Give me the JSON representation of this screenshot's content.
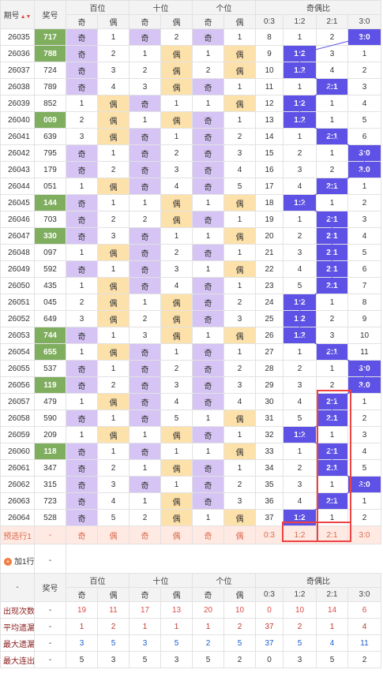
{
  "headers": {
    "issue": "期号",
    "prize": "奖号",
    "hundreds": "百位",
    "tens": "十位",
    "units": "个位",
    "ratio": "奇偶比",
    "odd": "奇",
    "even": "偶",
    "ratio_cols": [
      "0:3",
      "1:2",
      "2:1",
      "3:0"
    ]
  },
  "rows": [
    {
      "issue": "26035",
      "num": "717",
      "hot": true,
      "h": [
        "奇",
        1
      ],
      "t": [
        "奇",
        2
      ],
      "u": [
        "奇",
        1
      ],
      "r": [
        8,
        1,
        2,
        "3:0"
      ],
      "sel": 3
    },
    {
      "issue": "26036",
      "num": "788",
      "hot": true,
      "h": [
        "奇",
        2
      ],
      "t": [
        1,
        "偶"
      ],
      "u": [
        1,
        "偶"
      ],
      "r": [
        9,
        "1:2",
        3,
        1
      ],
      "sel": 1
    },
    {
      "issue": "26037",
      "num": "724",
      "hot": false,
      "h": [
        "奇",
        3
      ],
      "t": [
        2,
        "偶"
      ],
      "u": [
        2,
        "偶"
      ],
      "r": [
        10,
        "1:2",
        4,
        2
      ],
      "sel": 1
    },
    {
      "issue": "26038",
      "num": "789",
      "hot": false,
      "h": [
        "奇",
        4
      ],
      "t": [
        3,
        "偶"
      ],
      "u": [
        "奇",
        1
      ],
      "r": [
        11,
        1,
        "2:1",
        3
      ],
      "sel": 2
    },
    {
      "issue": "26039",
      "num": "852",
      "hot": false,
      "h": [
        1,
        "偶"
      ],
      "t": [
        "奇",
        1
      ],
      "u": [
        1,
        "偶"
      ],
      "r": [
        12,
        "1:2",
        1,
        4
      ],
      "sel": 1
    },
    {
      "issue": "26040",
      "num": "009",
      "hot": true,
      "h": [
        2,
        "偶"
      ],
      "t": [
        1,
        "偶"
      ],
      "u": [
        "奇",
        1
      ],
      "r": [
        13,
        "1:2",
        1,
        5
      ],
      "sel": 1
    },
    {
      "issue": "26041",
      "num": "639",
      "hot": false,
      "h": [
        3,
        "偶"
      ],
      "t": [
        "奇",
        1
      ],
      "u": [
        "奇",
        2
      ],
      "r": [
        14,
        1,
        "2:1",
        6
      ],
      "sel": 2
    },
    {
      "issue": "26042",
      "num": "795",
      "hot": false,
      "h": [
        "奇",
        1
      ],
      "t": [
        "奇",
        2
      ],
      "u": [
        "奇",
        3
      ],
      "r": [
        15,
        2,
        1,
        "3:0"
      ],
      "sel": 3
    },
    {
      "issue": "26043",
      "num": "179",
      "hot": false,
      "h": [
        "奇",
        2
      ],
      "t": [
        "奇",
        3
      ],
      "u": [
        "奇",
        4
      ],
      "r": [
        16,
        3,
        2,
        "3:0"
      ],
      "sel": 3
    },
    {
      "issue": "26044",
      "num": "051",
      "hot": false,
      "h": [
        1,
        "偶"
      ],
      "t": [
        "奇",
        4
      ],
      "u": [
        "奇",
        5
      ],
      "r": [
        17,
        4,
        "2:1",
        1
      ],
      "sel": 2
    },
    {
      "issue": "26045",
      "num": "144",
      "hot": true,
      "h": [
        "奇",
        1
      ],
      "t": [
        1,
        "偶"
      ],
      "u": [
        1,
        "偶"
      ],
      "r": [
        18,
        "1:2",
        1,
        2
      ],
      "sel": 1
    },
    {
      "issue": "26046",
      "num": "703",
      "hot": false,
      "h": [
        "奇",
        2
      ],
      "t": [
        2,
        "偶"
      ],
      "u": [
        "奇",
        1
      ],
      "r": [
        19,
        1,
        "2:1",
        3
      ],
      "sel": 2
    },
    {
      "issue": "26047",
      "num": "330",
      "hot": true,
      "h": [
        "奇",
        3
      ],
      "t": [
        "奇",
        1
      ],
      "u": [
        1,
        "偶"
      ],
      "r": [
        20,
        2,
        "2:1",
        4
      ],
      "sel": 2
    },
    {
      "issue": "26048",
      "num": "097",
      "hot": false,
      "h": [
        1,
        "偶"
      ],
      "t": [
        "奇",
        2
      ],
      "u": [
        "奇",
        1
      ],
      "r": [
        21,
        3,
        "2:1",
        5
      ],
      "sel": 2
    },
    {
      "issue": "26049",
      "num": "592",
      "hot": false,
      "h": [
        "奇",
        1
      ],
      "t": [
        "奇",
        3
      ],
      "u": [
        1,
        "偶"
      ],
      "r": [
        22,
        4,
        "2:1",
        6
      ],
      "sel": 2
    },
    {
      "issue": "26050",
      "num": "435",
      "hot": false,
      "h": [
        1,
        "偶"
      ],
      "t": [
        "奇",
        4
      ],
      "u": [
        "奇",
        1
      ],
      "r": [
        23,
        5,
        "2:1",
        7
      ],
      "sel": 2
    },
    {
      "issue": "26051",
      "num": "045",
      "hot": false,
      "h": [
        2,
        "偶"
      ],
      "t": [
        1,
        "偶"
      ],
      "u": [
        "奇",
        2
      ],
      "r": [
        24,
        "1:2",
        1,
        8
      ],
      "sel": 1
    },
    {
      "issue": "26052",
      "num": "649",
      "hot": false,
      "h": [
        3,
        "偶"
      ],
      "t": [
        2,
        "偶"
      ],
      "u": [
        "奇",
        3
      ],
      "r": [
        25,
        "1:2",
        2,
        9
      ],
      "sel": 1
    },
    {
      "issue": "26053",
      "num": "744",
      "hot": true,
      "h": [
        "奇",
        1
      ],
      "t": [
        3,
        "偶"
      ],
      "u": [
        1,
        "偶"
      ],
      "r": [
        26,
        "1:2",
        3,
        10
      ],
      "sel": 1
    },
    {
      "issue": "26054",
      "num": "655",
      "hot": true,
      "h": [
        1,
        "偶"
      ],
      "t": [
        "奇",
        1
      ],
      "u": [
        "奇",
        1
      ],
      "r": [
        27,
        1,
        "2:1",
        11
      ],
      "sel": 2
    },
    {
      "issue": "26055",
      "num": "537",
      "hot": false,
      "h": [
        "奇",
        1
      ],
      "t": [
        "奇",
        2
      ],
      "u": [
        "奇",
        2
      ],
      "r": [
        28,
        2,
        1,
        "3:0"
      ],
      "sel": 3
    },
    {
      "issue": "26056",
      "num": "119",
      "hot": true,
      "h": [
        "奇",
        2
      ],
      "t": [
        "奇",
        3
      ],
      "u": [
        "奇",
        3
      ],
      "r": [
        29,
        3,
        2,
        "3:0"
      ],
      "sel": 3
    },
    {
      "issue": "26057",
      "num": "479",
      "hot": false,
      "h": [
        1,
        "偶"
      ],
      "t": [
        "奇",
        4
      ],
      "u": [
        "奇",
        4
      ],
      "r": [
        30,
        4,
        "2:1",
        1
      ],
      "sel": 2
    },
    {
      "issue": "26058",
      "num": "590",
      "hot": false,
      "h": [
        "奇",
        1
      ],
      "t": [
        "奇",
        5
      ],
      "u": [
        1,
        "偶"
      ],
      "r": [
        31,
        5,
        "2:1",
        2
      ],
      "sel": 2
    },
    {
      "issue": "26059",
      "num": "209",
      "hot": false,
      "h": [
        1,
        "偶"
      ],
      "t": [
        1,
        "偶"
      ],
      "u": [
        "奇",
        1
      ],
      "r": [
        32,
        "1:2",
        1,
        3
      ],
      "sel": 1
    },
    {
      "issue": "26060",
      "num": "118",
      "hot": true,
      "h": [
        "奇",
        1
      ],
      "t": [
        "奇",
        1
      ],
      "u": [
        1,
        "偶"
      ],
      "r": [
        33,
        1,
        "2:1",
        4
      ],
      "sel": 2
    },
    {
      "issue": "26061",
      "num": "347",
      "hot": false,
      "h": [
        "奇",
        2
      ],
      "t": [
        1,
        "偶"
      ],
      "u": [
        "奇",
        1
      ],
      "r": [
        34,
        2,
        "2:1",
        5
      ],
      "sel": 2
    },
    {
      "issue": "26062",
      "num": "315",
      "hot": false,
      "h": [
        "奇",
        3
      ],
      "t": [
        "奇",
        1
      ],
      "u": [
        "奇",
        2
      ],
      "r": [
        35,
        3,
        1,
        "3:0"
      ],
      "sel": 3
    },
    {
      "issue": "26063",
      "num": "723",
      "hot": false,
      "h": [
        "奇",
        4
      ],
      "t": [
        1,
        "偶"
      ],
      "u": [
        "奇",
        3
      ],
      "r": [
        36,
        4,
        "2:1",
        1
      ],
      "sel": 2
    },
    {
      "issue": "26064",
      "num": "528",
      "hot": false,
      "h": [
        "奇",
        5
      ],
      "t": [
        2,
        "偶"
      ],
      "u": [
        1,
        "偶"
      ],
      "r": [
        37,
        "1:2",
        1,
        2
      ],
      "sel": 1
    }
  ],
  "preview": {
    "label": "预选行1",
    "prize": "-",
    "cells": [
      "奇",
      "偶",
      "奇",
      "偶",
      "奇",
      "偶",
      "0:3",
      "1:2",
      "2:1",
      "3:0"
    ]
  },
  "add_row": {
    "label": "加1行",
    "value": "-"
  },
  "footer": {
    "dash": "-",
    "prize": "奖号",
    "stats": [
      {
        "label": "出现次数",
        "prize": "-",
        "vals": [
          19,
          11,
          17,
          13,
          20,
          10,
          0,
          10,
          14,
          6
        ]
      },
      {
        "label": "平均遗漏",
        "prize": "-",
        "vals": [
          1,
          2,
          1,
          1,
          1,
          2,
          37,
          2,
          1,
          4
        ]
      },
      {
        "label": "最大遗漏",
        "prize": "-",
        "vals": [
          3,
          5,
          3,
          5,
          2,
          5,
          37,
          5,
          4,
          11
        ]
      },
      {
        "label": "最大连出",
        "prize": "-",
        "vals": [
          5,
          3,
          5,
          3,
          5,
          2,
          0,
          3,
          5,
          2
        ]
      }
    ]
  },
  "colors": {
    "odd": "#d5c4f4",
    "even": "#fde1ab",
    "selected": "#5e51e5",
    "hot": "#7fae5f",
    "highlight": "#ee4343"
  }
}
